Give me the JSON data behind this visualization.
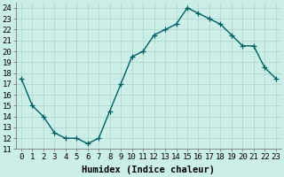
{
  "x": [
    0,
    1,
    2,
    3,
    4,
    5,
    6,
    7,
    8,
    9,
    10,
    11,
    12,
    13,
    14,
    15,
    16,
    17,
    18,
    19,
    20,
    21,
    22,
    23
  ],
  "y": [
    17.5,
    15.0,
    14.0,
    12.5,
    12.0,
    12.0,
    11.5,
    12.0,
    14.5,
    17.0,
    19.5,
    20.0,
    21.5,
    22.0,
    22.5,
    24.0,
    23.5,
    23.0,
    22.5,
    21.5,
    20.5,
    20.5,
    18.5,
    17.5
  ],
  "xlabel": "Humidex (Indice chaleur)",
  "line_color": "#006060",
  "marker": "+",
  "marker_size": 4,
  "marker_color": "#006060",
  "bg_color": "#cceee8",
  "grid_color": "#aad4ce",
  "xlim": [
    -0.5,
    23.5
  ],
  "ylim": [
    11,
    24.5
  ],
  "yticks": [
    11,
    12,
    13,
    14,
    15,
    16,
    17,
    18,
    19,
    20,
    21,
    22,
    23,
    24
  ],
  "xticks": [
    0,
    1,
    2,
    3,
    4,
    5,
    6,
    7,
    8,
    9,
    10,
    11,
    12,
    13,
    14,
    15,
    16,
    17,
    18,
    19,
    20,
    21,
    22,
    23
  ],
  "xtick_labels": [
    "0",
    "1",
    "2",
    "3",
    "4",
    "5",
    "6",
    "7",
    "8",
    "9",
    "10",
    "11",
    "12",
    "13",
    "14",
    "15",
    "16",
    "17",
    "18",
    "19",
    "20",
    "21",
    "22",
    "23"
  ],
  "tick_fontsize": 6.5,
  "xlabel_fontsize": 7.5,
  "line_width": 1.0
}
